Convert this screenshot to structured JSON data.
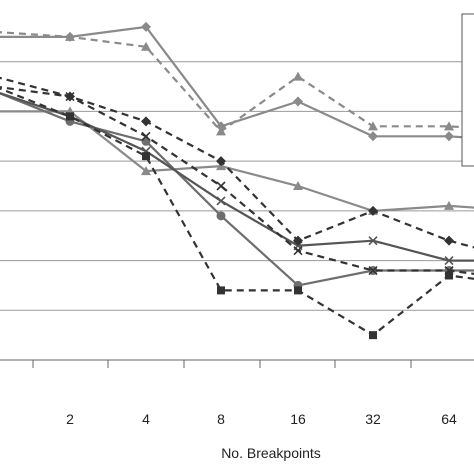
{
  "chart_data": {
    "type": "line",
    "xlabel": "No. Breakpoints",
    "ylabel": "",
    "categories": [
      "",
      "2",
      "4",
      "8",
      "16",
      "32",
      "64",
      ""
    ],
    "ylim": [
      0,
      7
    ],
    "grid": true,
    "series": [
      {
        "style": "solid",
        "marker": "diamond",
        "color": "#8a8a8a",
        "values": [
          6.5,
          6.5,
          6.7,
          4.7,
          5.2,
          4.5,
          4.5,
          4.4
        ]
      },
      {
        "style": "dashed",
        "marker": "triangle",
        "color": "#8a8a8a",
        "values": [
          6.6,
          6.5,
          6.3,
          4.6,
          5.7,
          4.7,
          4.7,
          4.6
        ]
      },
      {
        "style": "solid",
        "marker": "triangle",
        "color": "#8a8a8a",
        "values": [
          5.0,
          5.0,
          3.8,
          3.9,
          3.5,
          3.0,
          3.1,
          3.0
        ]
      },
      {
        "style": "solid",
        "marker": "circle",
        "color": "#6e6e6e",
        "values": [
          5.4,
          4.8,
          4.4,
          2.9,
          1.5,
          1.8,
          1.8,
          1.8
        ]
      },
      {
        "style": "solid",
        "marker": "x",
        "color": "#555555",
        "values": [
          5.4,
          4.9,
          4.2,
          3.2,
          2.3,
          2.4,
          2.0,
          2.0
        ]
      },
      {
        "style": "dashed",
        "marker": "diamond",
        "color": "#333333",
        "values": [
          5.7,
          5.3,
          4.8,
          4.0,
          2.4,
          3.0,
          2.4,
          2.0
        ]
      },
      {
        "style": "dashed",
        "marker": "square",
        "color": "#333333",
        "values": [
          5.5,
          4.9,
          4.1,
          1.4,
          1.4,
          0.5,
          1.7,
          1.5
        ]
      },
      {
        "style": "dashed",
        "marker": "x",
        "color": "#333333",
        "values": [
          5.5,
          5.3,
          4.5,
          3.5,
          2.2,
          1.8,
          1.8,
          1.6
        ]
      }
    ]
  }
}
